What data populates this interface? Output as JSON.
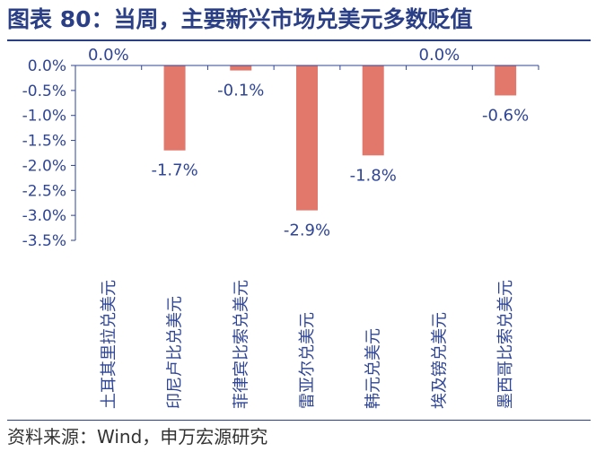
{
  "header": {
    "title": "图表 80：当周，主要新兴市场兑美元多数贬值"
  },
  "chart_data": {
    "type": "bar",
    "title": "",
    "xlabel": "",
    "ylabel": "",
    "categories": [
      "土耳其里拉兑美元",
      "印尼卢比兑美元",
      "菲律宾比索兑美元",
      "雷亚尔兑美元",
      "韩元兑美元",
      "埃及镑兑美元",
      "墨西哥比索兑美元"
    ],
    "values": [
      0.0,
      -1.7,
      -0.1,
      -2.9,
      -1.8,
      0.0,
      -0.6
    ],
    "data_labels": [
      "0.0%",
      "-1.7%",
      "-0.1%",
      "-2.9%",
      "-1.8%",
      "0.0%",
      "-0.6%"
    ],
    "y_ticks": [
      "0.0%",
      "-0.5%",
      "-1.0%",
      "-1.5%",
      "-2.0%",
      "-2.5%",
      "-3.0%",
      "-3.5%"
    ],
    "ylim": [
      -3.5,
      0.0
    ],
    "grid": false,
    "bar_color": "#e2776b",
    "axis_color": "#2f4595"
  },
  "footer": {
    "source": "资料来源：Wind，申万宏源研究"
  }
}
